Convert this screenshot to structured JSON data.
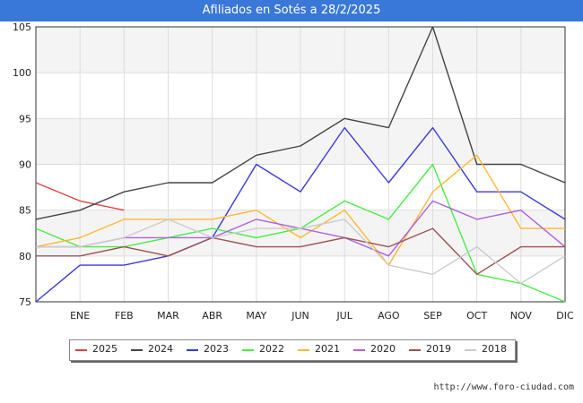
{
  "header": {
    "title": "Afiliados en Sotés a 28/2/2025"
  },
  "footer": {
    "url": "http://www.foro-ciudad.com"
  },
  "chart_data": {
    "type": "line",
    "title": "Afiliados en Sotés a 28/2/2025",
    "xlabel": "",
    "ylabel": "",
    "categories": [
      "",
      "ENE",
      "FEB",
      "MAR",
      "ABR",
      "MAY",
      "JUN",
      "JUL",
      "AGO",
      "SEP",
      "OCT",
      "NOV",
      "DIC"
    ],
    "ylim": [
      75,
      105
    ],
    "yticks": [
      75,
      80,
      85,
      90,
      95,
      100,
      105
    ],
    "grid": true,
    "legend_position": "bottom",
    "series": [
      {
        "name": "2025",
        "color": "#e04040",
        "values": [
          88,
          86,
          85,
          null,
          null,
          null,
          null,
          null,
          null,
          null,
          null,
          null,
          null
        ]
      },
      {
        "name": "2024",
        "color": "#444444",
        "values": [
          84,
          85,
          87,
          88,
          88,
          91,
          92,
          95,
          94,
          105,
          90,
          90,
          88
        ]
      },
      {
        "name": "2023",
        "color": "#3a3ae0",
        "values": [
          75,
          79,
          79,
          80,
          82,
          90,
          87,
          94,
          88,
          94,
          87,
          87,
          84
        ]
      },
      {
        "name": "2022",
        "color": "#44ee44",
        "values": [
          83,
          81,
          81,
          82,
          83,
          82,
          83,
          86,
          84,
          90,
          78,
          77,
          75
        ]
      },
      {
        "name": "2021",
        "color": "#ffb830",
        "values": [
          81,
          82,
          84,
          84,
          84,
          85,
          82,
          85,
          79,
          87,
          91,
          83,
          83
        ]
      },
      {
        "name": "2020",
        "color": "#b060e0",
        "values": [
          81,
          81,
          82,
          82,
          82,
          84,
          83,
          82,
          80,
          86,
          84,
          85,
          81
        ]
      },
      {
        "name": "2019",
        "color": "#a05050",
        "values": [
          80,
          80,
          81,
          80,
          82,
          81,
          81,
          82,
          81,
          83,
          78,
          81,
          81
        ]
      },
      {
        "name": "2018",
        "color": "#cccccc",
        "values": [
          81,
          81,
          82,
          84,
          82,
          83,
          83,
          84,
          79,
          78,
          81,
          77,
          80
        ]
      }
    ]
  }
}
